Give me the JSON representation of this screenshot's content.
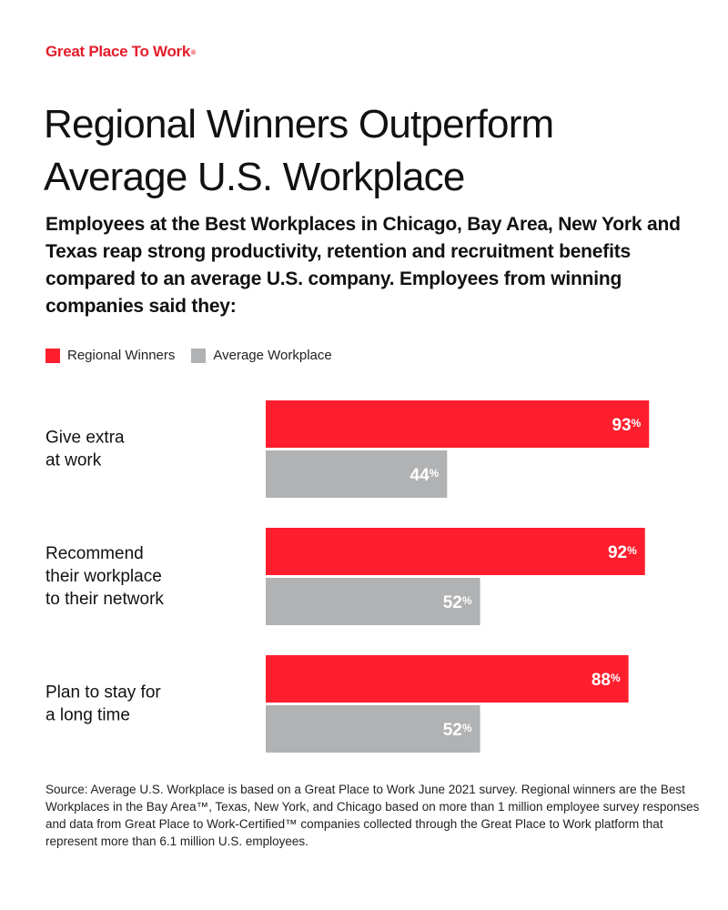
{
  "brand": {
    "name": "Great Place To Work",
    "mark": "®",
    "color": "#e41d2b"
  },
  "header": {
    "title": "Regional Winners Outperform Average U.S. Workplace",
    "subtitle": "Employees at the Best Workplaces in Chicago, Bay Area, New York and Texas reap strong productivity, retention and recruitment benefits compared to an average U.S. company. Employees from winning companies said they:"
  },
  "legend": [
    {
      "label": "Regional Winners",
      "color": "#ff1e2d"
    },
    {
      "label": "Average Workplace",
      "color": "#b0b2b4"
    }
  ],
  "chart_data": {
    "type": "bar",
    "orientation": "horizontal",
    "categories": [
      [
        "Give extra",
        "at work"
      ],
      [
        "Recommend",
        "their workplace",
        "to their network"
      ],
      [
        "Plan to stay for",
        "a long time"
      ]
    ],
    "series": [
      {
        "name": "Regional Winners",
        "values": [
          93,
          92,
          88
        ],
        "color": "#ff1e2d"
      },
      {
        "name": "Average Workplace",
        "values": [
          44,
          52,
          52
        ],
        "color": "#b0b2b4"
      }
    ],
    "value_suffix": "%",
    "xlim": [
      0,
      100
    ],
    "grid": false,
    "legend_position": "top-left"
  },
  "footnote": "Source: Average U.S. Workplace is based on a Great Place to Work June 2021 survey. Regional winners are the Best Workplaces in the Bay Area™, Texas, New York, and Chicago based on more than 1 million employee survey responses and data from Great Place to Work-Certified™ companies collected through the Great Place to Work platform that represent more than 6.1 million U.S. employees."
}
